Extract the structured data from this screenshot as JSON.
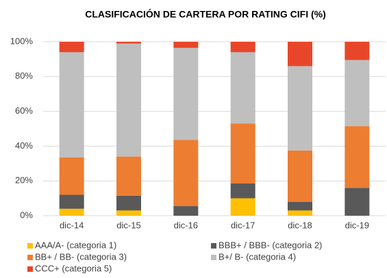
{
  "chart_data": {
    "type": "stacked_bar",
    "title": "CLASIFICACIÓN DE CARTERA POR RATING CIFI (%)",
    "categories": [
      "dic-14",
      "dic-15",
      "dic-16",
      "dic-17",
      "dic-18",
      "dic-19"
    ],
    "series": [
      {
        "name": "AAA/A- (categoria 1)",
        "color": "#ffc000",
        "values": [
          4,
          3,
          0,
          10,
          3,
          0
        ]
      },
      {
        "name": "BBB+ / BBB- (categoria 2)",
        "color": "#595959",
        "values": [
          8,
          8.5,
          5.5,
          8.5,
          5,
          16
        ]
      },
      {
        "name": "BB+ / BB- (categoria 3)",
        "color": "#ed7d31",
        "values": [
          21.5,
          22.5,
          38,
          34.5,
          29.5,
          35.5
        ]
      },
      {
        "name": "B+/ B- (categoria 4)",
        "color": "#bfbfbf",
        "values": [
          60.5,
          65,
          53,
          41,
          48.5,
          38
        ]
      },
      {
        "name": "CCC+ (categoria 5)",
        "color": "#e8462a",
        "values": [
          6,
          1,
          3.5,
          6,
          14,
          10.5
        ]
      }
    ],
    "ylim": [
      0,
      100
    ],
    "yticks": [
      {
        "value": 0,
        "label": "0%"
      },
      {
        "value": 20,
        "label": "20%"
      },
      {
        "value": 40,
        "label": "40%"
      },
      {
        "value": 60,
        "label": "60%"
      },
      {
        "value": 80,
        "label": "80%"
      },
      {
        "value": 100,
        "label": "100%"
      }
    ],
    "grid": true
  }
}
